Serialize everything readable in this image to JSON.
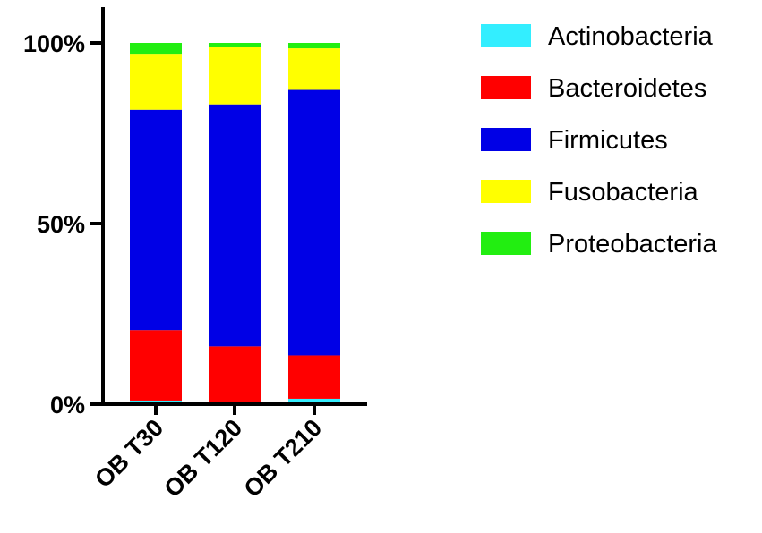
{
  "chart_data": {
    "type": "bar",
    "stacked": true,
    "normalized": true,
    "title": "",
    "xlabel": "",
    "ylabel": "",
    "ylim": [
      0,
      100
    ],
    "yticks": [
      {
        "value": 0,
        "label": "0%"
      },
      {
        "value": 50,
        "label": "50%"
      },
      {
        "value": 100,
        "label": "100%"
      }
    ],
    "categories": [
      "OB T30",
      "OB T120",
      "OB T210"
    ],
    "series": [
      {
        "name": "Actinobacteria",
        "color": "#33eeff",
        "values": [
          1,
          0.5,
          1.5
        ]
      },
      {
        "name": "Bacteroidetes",
        "color": "#ff0000",
        "values": [
          19.5,
          15.5,
          12
        ]
      },
      {
        "name": "Firmicutes",
        "color": "#0000e6",
        "values": [
          61,
          67,
          73.5
        ]
      },
      {
        "name": "Fusobacteria",
        "color": "#ffff00",
        "values": [
          15.5,
          16,
          11.5
        ]
      },
      {
        "name": "Proteobacteria",
        "color": "#22ee11",
        "values": [
          3,
          1,
          1.5
        ]
      }
    ],
    "legend_position": "right",
    "grid": false
  }
}
